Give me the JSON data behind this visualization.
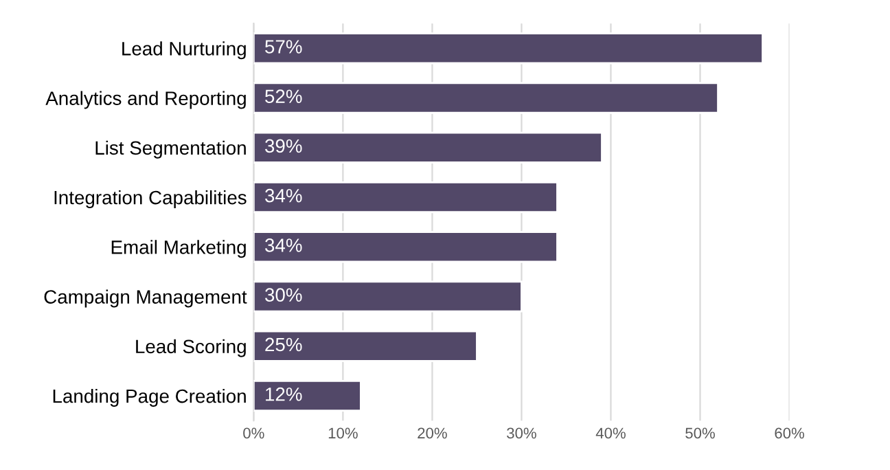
{
  "chart_data": {
    "type": "bar",
    "orientation": "horizontal",
    "categories": [
      "Lead Nurturing",
      "Analytics and Reporting",
      "List Segmentation",
      "Integration Capabilities",
      "Email Marketing",
      "Campaign Management",
      "Lead Scoring",
      "Landing Page Creation"
    ],
    "values": [
      57,
      52,
      39,
      34,
      34,
      30,
      25,
      12
    ],
    "value_labels": [
      "57%",
      "52%",
      "39%",
      "34%",
      "34%",
      "30%",
      "25%",
      "12%"
    ],
    "color": "#524868",
    "xlim": [
      0,
      60
    ],
    "xticks": [
      {
        "value": 0,
        "label": "0%"
      },
      {
        "value": 10,
        "label": "10%"
      },
      {
        "value": 20,
        "label": "20%"
      },
      {
        "value": 30,
        "label": "30%"
      },
      {
        "value": 40,
        "label": "40%"
      },
      {
        "value": 50,
        "label": "50%"
      },
      {
        "value": 60,
        "label": "60%"
      }
    ],
    "grid": "x"
  }
}
